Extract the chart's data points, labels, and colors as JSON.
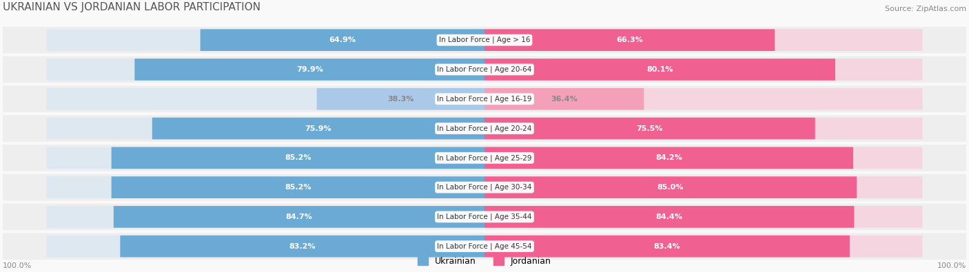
{
  "title": "UKRAINIAN VS JORDANIAN LABOR PARTICIPATION",
  "source": "Source: ZipAtlas.com",
  "categories": [
    "In Labor Force | Age > 16",
    "In Labor Force | Age 20-64",
    "In Labor Force | Age 16-19",
    "In Labor Force | Age 20-24",
    "In Labor Force | Age 25-29",
    "In Labor Force | Age 30-34",
    "In Labor Force | Age 35-44",
    "In Labor Force | Age 45-54"
  ],
  "ukrainian_values": [
    64.9,
    79.9,
    38.3,
    75.9,
    85.2,
    85.2,
    84.7,
    83.2
  ],
  "jordanian_values": [
    66.3,
    80.1,
    36.4,
    75.5,
    84.2,
    85.0,
    84.4,
    83.4
  ],
  "ukrainian_color_dark": "#6aaad4",
  "ukrainian_color_light": "#aac8e8",
  "jordanian_color_dark": "#f06090",
  "jordanian_color_light": "#f4a0b8",
  "bar_bg_color": "#f0f0f0",
  "row_bg_even": "#f7f7f7",
  "row_bg_odd": "#ffffff",
  "label_color_dark": "#ffffff",
  "label_color_light": "#888888",
  "threshold": 60,
  "bar_height": 0.72,
  "max_value": 100.0
}
